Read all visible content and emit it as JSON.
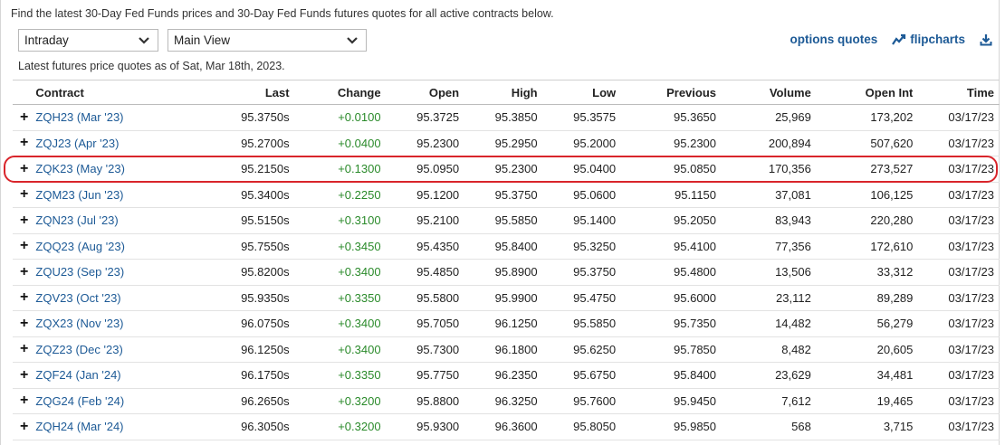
{
  "intro_text": "Find the latest 30-Day Fed Funds prices and 30-Day Fed Funds futures quotes for all active contracts below.",
  "controls": {
    "interval_select": "Intraday",
    "view_select": "Main View"
  },
  "links": {
    "options_quotes": "options quotes",
    "flipcharts": "flipcharts"
  },
  "as_of": "Latest futures price quotes as of Sat, Mar 18th, 2023.",
  "colors": {
    "link": "#1d5a96",
    "positive_change": "#2a8a2a",
    "highlight": "#d9252b"
  },
  "table": {
    "headers": [
      "Contract",
      "Last",
      "Change",
      "Open",
      "High",
      "Low",
      "Previous",
      "Volume",
      "Open Int",
      "Time"
    ],
    "highlighted_contract": "ZQK23 (May '23)",
    "rows": [
      [
        "ZQH23 (Mar '23)",
        "95.3750s",
        "+0.0100",
        "95.3725",
        "95.3850",
        "95.3575",
        "95.3650",
        "25,969",
        "173,202",
        "03/17/23"
      ],
      [
        "ZQJ23 (Apr '23)",
        "95.2700s",
        "+0.0400",
        "95.2300",
        "95.2950",
        "95.2000",
        "95.2300",
        "200,894",
        "507,620",
        "03/17/23"
      ],
      [
        "ZQK23 (May '23)",
        "95.2150s",
        "+0.1300",
        "95.0950",
        "95.2300",
        "95.0400",
        "95.0850",
        "170,356",
        "273,527",
        "03/17/23"
      ],
      [
        "ZQM23 (Jun '23)",
        "95.3400s",
        "+0.2250",
        "95.1200",
        "95.3750",
        "95.0600",
        "95.1150",
        "37,081",
        "106,125",
        "03/17/23"
      ],
      [
        "ZQN23 (Jul '23)",
        "95.5150s",
        "+0.3100",
        "95.2100",
        "95.5850",
        "95.1400",
        "95.2050",
        "83,943",
        "220,280",
        "03/17/23"
      ],
      [
        "ZQQ23 (Aug '23)",
        "95.7550s",
        "+0.3450",
        "95.4350",
        "95.8400",
        "95.3250",
        "95.4100",
        "77,356",
        "172,610",
        "03/17/23"
      ],
      [
        "ZQU23 (Sep '23)",
        "95.8200s",
        "+0.3400",
        "95.4850",
        "95.8900",
        "95.3750",
        "95.4800",
        "13,506",
        "33,312",
        "03/17/23"
      ],
      [
        "ZQV23 (Oct '23)",
        "95.9350s",
        "+0.3350",
        "95.5800",
        "95.9900",
        "95.4750",
        "95.6000",
        "23,112",
        "89,289",
        "03/17/23"
      ],
      [
        "ZQX23 (Nov '23)",
        "96.0750s",
        "+0.3400",
        "95.7050",
        "96.1250",
        "95.5850",
        "95.7350",
        "14,482",
        "56,279",
        "03/17/23"
      ],
      [
        "ZQZ23 (Dec '23)",
        "96.1250s",
        "+0.3400",
        "95.7300",
        "96.1800",
        "95.6250",
        "95.7850",
        "8,482",
        "20,605",
        "03/17/23"
      ],
      [
        "ZQF24 (Jan '24)",
        "96.1750s",
        "+0.3350",
        "95.7750",
        "96.2350",
        "95.6750",
        "95.8400",
        "23,629",
        "34,481",
        "03/17/23"
      ],
      [
        "ZQG24 (Feb '24)",
        "96.2650s",
        "+0.3200",
        "95.8800",
        "96.3250",
        "95.7600",
        "95.9450",
        "7,612",
        "19,465",
        "03/17/23"
      ],
      [
        "ZQH24 (Mar '24)",
        "96.3050s",
        "+0.3200",
        "95.9300",
        "96.3600",
        "95.8050",
        "95.9850",
        "568",
        "3,715",
        "03/17/23"
      ]
    ]
  }
}
